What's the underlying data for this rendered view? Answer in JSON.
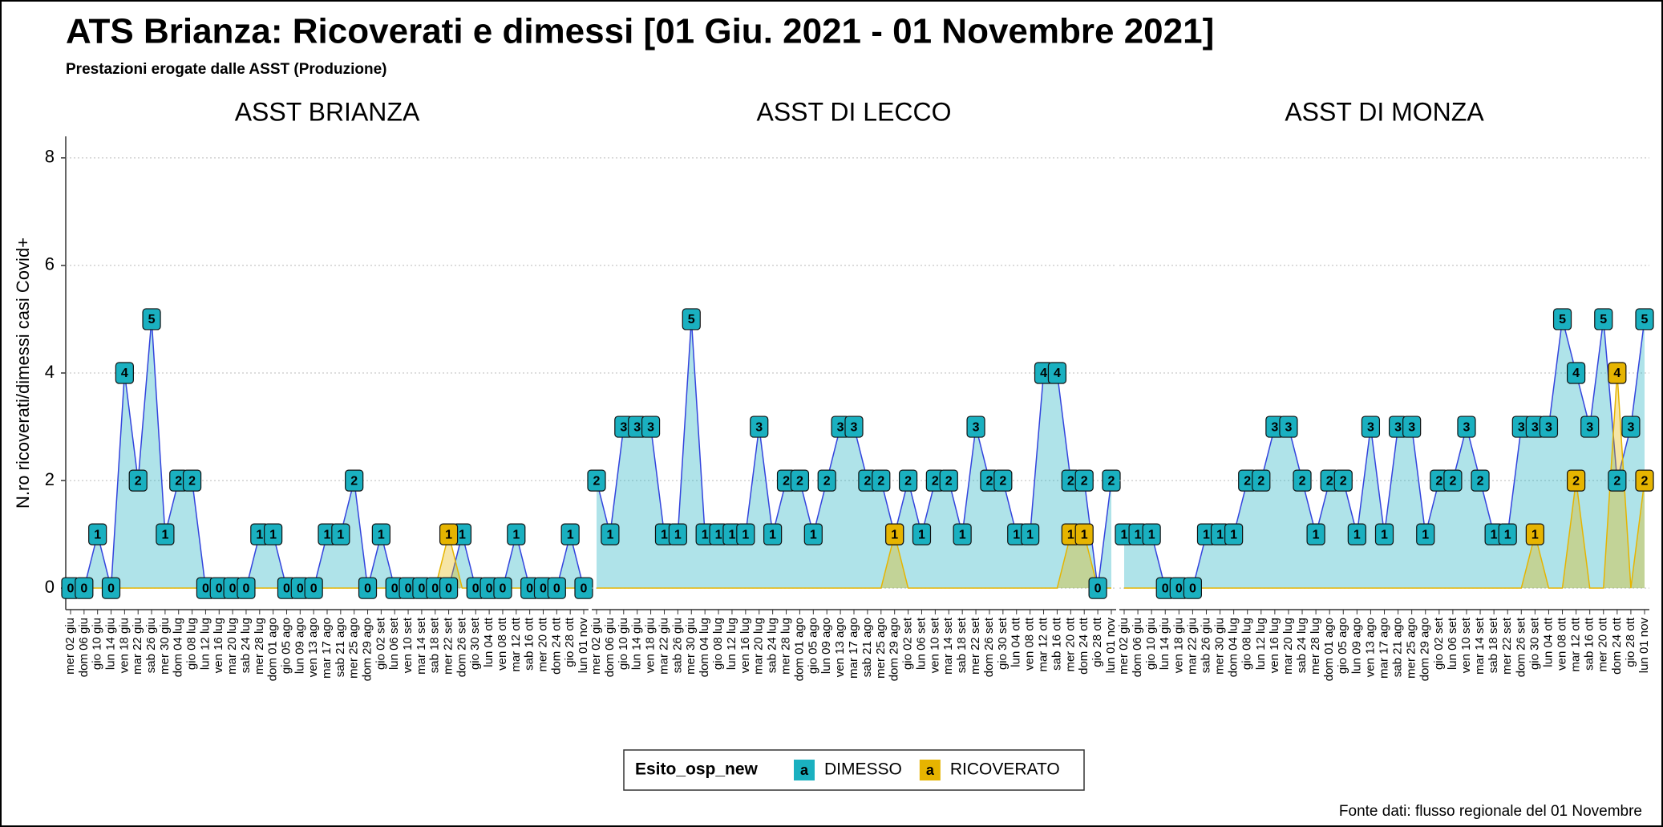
{
  "chart_data": {
    "type": "line",
    "title": "ATS Brianza: Ricoverati e dimessi [01 Giu. 2021 - 01 Novembre 2021]",
    "subtitle": "Prestazioni erogate dalle ASST (Produzione)",
    "ylabel": "N.ro ricoverati/dimessi casi Covid+",
    "caption": "Fonte dati: flusso regionale del 01 Novembre",
    "legend_title": "Esito_osp_new",
    "legend_key": "a",
    "grid": true,
    "ylim": [
      -0.4,
      8.4
    ],
    "yticks": [
      0,
      2,
      4,
      6,
      8
    ],
    "categories": [
      "mer 02 giu",
      "dom 06 giu",
      "gio 10 giu",
      "lun 14 giu",
      "ven 18 giu",
      "mar 22 giu",
      "sab 26 giu",
      "mer 30 giu",
      "dom 04 lug",
      "gio 08 lug",
      "lun 12 lug",
      "ven 16 lug",
      "mar 20 lug",
      "sab 24 lug",
      "mer 28 lug",
      "dom 01 ago",
      "gio 05 ago",
      "lun 09 ago",
      "ven 13 ago",
      "mar 17 ago",
      "sab 21 ago",
      "mer 25 ago",
      "dom 29 ago",
      "gio 02 set",
      "lun 06 set",
      "ven 10 set",
      "mar 14 set",
      "sab 18 set",
      "mer 22 set",
      "dom 26 set",
      "gio 30 set",
      "lun 04 ott",
      "ven 08 ott",
      "mar 12 ott",
      "sab 16 ott",
      "mer 20 ott",
      "dom 24 ott",
      "gio 28 ott",
      "lun 01 nov"
    ],
    "panels": [
      {
        "title": "ASST BRIANZA",
        "series": [
          {
            "name": "DIMESSO",
            "color": "#1ab0c0",
            "values": [
              0,
              0,
              1,
              0,
              4,
              2,
              5,
              1,
              2,
              2,
              0,
              0,
              0,
              0,
              1,
              1,
              0,
              0,
              0,
              1,
              1,
              2,
              0,
              1,
              0,
              0,
              0,
              0,
              0,
              1,
              0,
              0,
              0,
              1,
              0,
              0,
              0,
              1,
              0
            ]
          },
          {
            "name": "RICOVERATO",
            "color": "#e6b400",
            "values": [
              0,
              0,
              0,
              0,
              0,
              0,
              0,
              0,
              0,
              0,
              0,
              0,
              0,
              0,
              0,
              0,
              0,
              0,
              0,
              0,
              0,
              0,
              0,
              0,
              0,
              0,
              0,
              0,
              1,
              0,
              0,
              0,
              0,
              0,
              0,
              0,
              0,
              0,
              0
            ]
          }
        ]
      },
      {
        "title": "ASST DI LECCO",
        "series": [
          {
            "name": "DIMESSO",
            "color": "#1ab0c0",
            "values": [
              2,
              1,
              3,
              3,
              3,
              1,
              1,
              5,
              1,
              1,
              1,
              1,
              3,
              1,
              2,
              2,
              1,
              2,
              3,
              3,
              2,
              2,
              1,
              2,
              1,
              2,
              2,
              1,
              3,
              2,
              2,
              1,
              1,
              4,
              4,
              2,
              2,
              0,
              2
            ]
          },
          {
            "name": "RICOVERATO",
            "color": "#e6b400",
            "values": [
              0,
              0,
              0,
              0,
              0,
              0,
              0,
              0,
              0,
              0,
              0,
              0,
              0,
              0,
              0,
              0,
              0,
              0,
              0,
              0,
              0,
              0,
              1,
              0,
              0,
              0,
              0,
              0,
              0,
              0,
              0,
              0,
              0,
              0,
              0,
              1,
              1,
              0,
              0
            ]
          }
        ]
      },
      {
        "title": "ASST DI MONZA",
        "series": [
          {
            "name": "DIMESSO",
            "color": "#1ab0c0",
            "values": [
              1,
              1,
              1,
              0,
              0,
              0,
              1,
              1,
              1,
              2,
              2,
              3,
              3,
              2,
              1,
              2,
              2,
              1,
              3,
              1,
              3,
              3,
              1,
              2,
              2,
              3,
              2,
              1,
              1,
              3,
              3,
              3,
              5,
              4,
              3,
              5,
              2,
              3,
              5
            ]
          },
          {
            "name": "RICOVERATO",
            "color": "#e6b400",
            "values": [
              0,
              0,
              0,
              0,
              0,
              0,
              0,
              0,
              0,
              0,
              0,
              0,
              0,
              0,
              0,
              0,
              0,
              0,
              0,
              0,
              0,
              0,
              0,
              0,
              0,
              0,
              0,
              0,
              0,
              0,
              1,
              0,
              0,
              2,
              0,
              0,
              4,
              0,
              2
            ]
          }
        ]
      }
    ]
  }
}
